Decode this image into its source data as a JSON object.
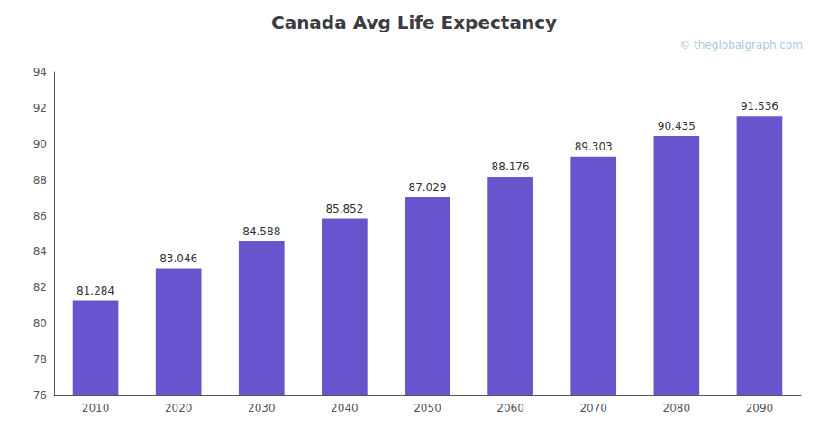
{
  "chart_data": {
    "type": "bar",
    "title": "Canada Avg Life Expectancy",
    "annotations": [
      "© theglobalgraph.com"
    ],
    "categories": [
      "2010",
      "2020",
      "2030",
      "2040",
      "2050",
      "2060",
      "2070",
      "2080",
      "2090"
    ],
    "values": [
      81.284,
      83.046,
      84.588,
      85.852,
      87.029,
      88.176,
      89.303,
      90.435,
      91.536
    ],
    "color": "#6655CC",
    "ylim": [
      76,
      94
    ],
    "yticks": [
      76,
      78,
      80,
      82,
      84,
      86,
      88,
      90,
      92,
      94
    ],
    "grid": false,
    "data_labels": true
  }
}
